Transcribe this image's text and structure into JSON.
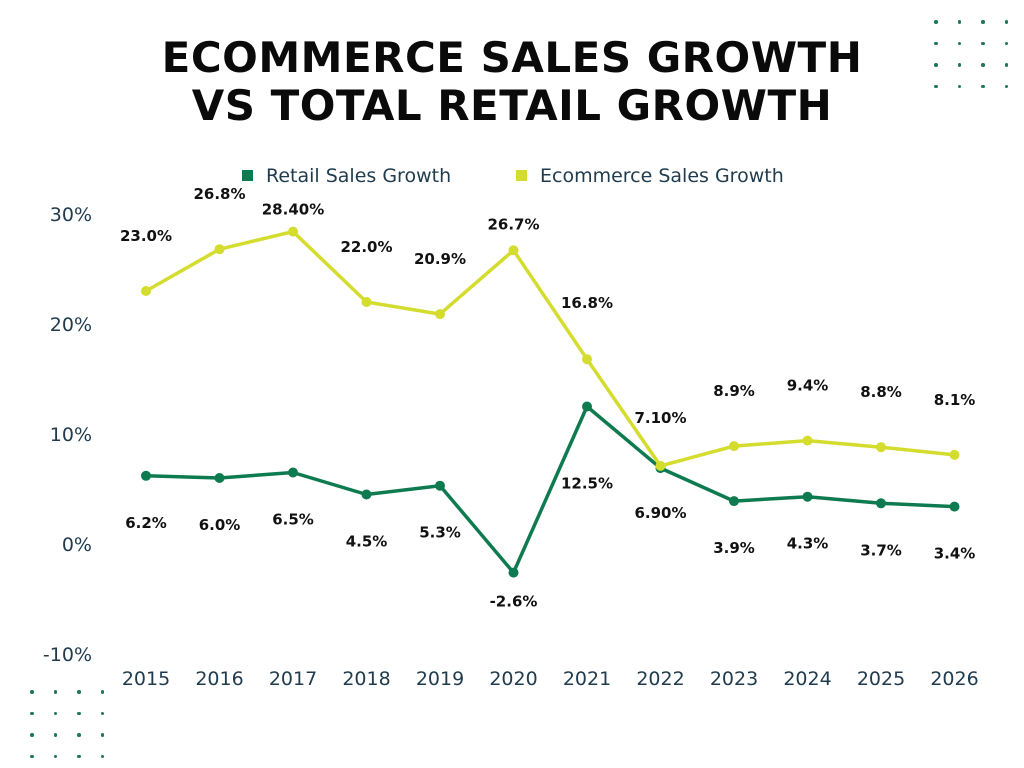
{
  "title_lines": [
    "ECOMMERCE SALES GROWTH",
    "VS TOTAL RETAIL GROWTH"
  ],
  "colors": {
    "retail": "#0e7a4f",
    "ecommerce": "#d4dc2e",
    "axis_text": "#1f3b4d",
    "label_text": "#111111",
    "dots": "#1e7a55"
  },
  "chart_data": {
    "type": "line",
    "title": "ECOMMERCE SALES GROWTH VS TOTAL RETAIL GROWTH",
    "categories": [
      "2015",
      "2016",
      "2017",
      "2018",
      "2019",
      "2020",
      "2021",
      "2022",
      "2023",
      "2024",
      "2025",
      "2026"
    ],
    "series": [
      {
        "name": "Retail Sales Growth",
        "values": [
          6.2,
          6.0,
          6.5,
          4.5,
          5.3,
          -2.6,
          12.5,
          6.9,
          3.9,
          4.3,
          3.7,
          3.4
        ],
        "labels": [
          "6.2%",
          "6.0%",
          "6.5%",
          "4.5%",
          "5.3%",
          "-2.6%",
          "12.5%",
          "6.90%",
          "3.9%",
          "4.3%",
          "3.7%",
          "3.4%"
        ],
        "color": "#0e7a4f"
      },
      {
        "name": "Ecommerce Sales Growth",
        "values": [
          23.0,
          26.8,
          28.4,
          22.0,
          20.9,
          26.7,
          16.8,
          7.1,
          8.9,
          9.4,
          8.8,
          8.1
        ],
        "labels": [
          "23.0%",
          "26.8%",
          "28.40%",
          "22.0%",
          "20.9%",
          "26.7%",
          "16.8%",
          "7.10%",
          "8.9%",
          "9.4%",
          "8.8%",
          "8.1%"
        ],
        "color": "#d4dc2e"
      }
    ],
    "y_ticks": [
      "30%",
      "20%",
      "10%",
      "0%",
      "-10%"
    ],
    "ylim": [
      -10,
      30
    ],
    "xlabel": "",
    "ylabel": "",
    "grid": false,
    "legend_position": "top-center"
  }
}
